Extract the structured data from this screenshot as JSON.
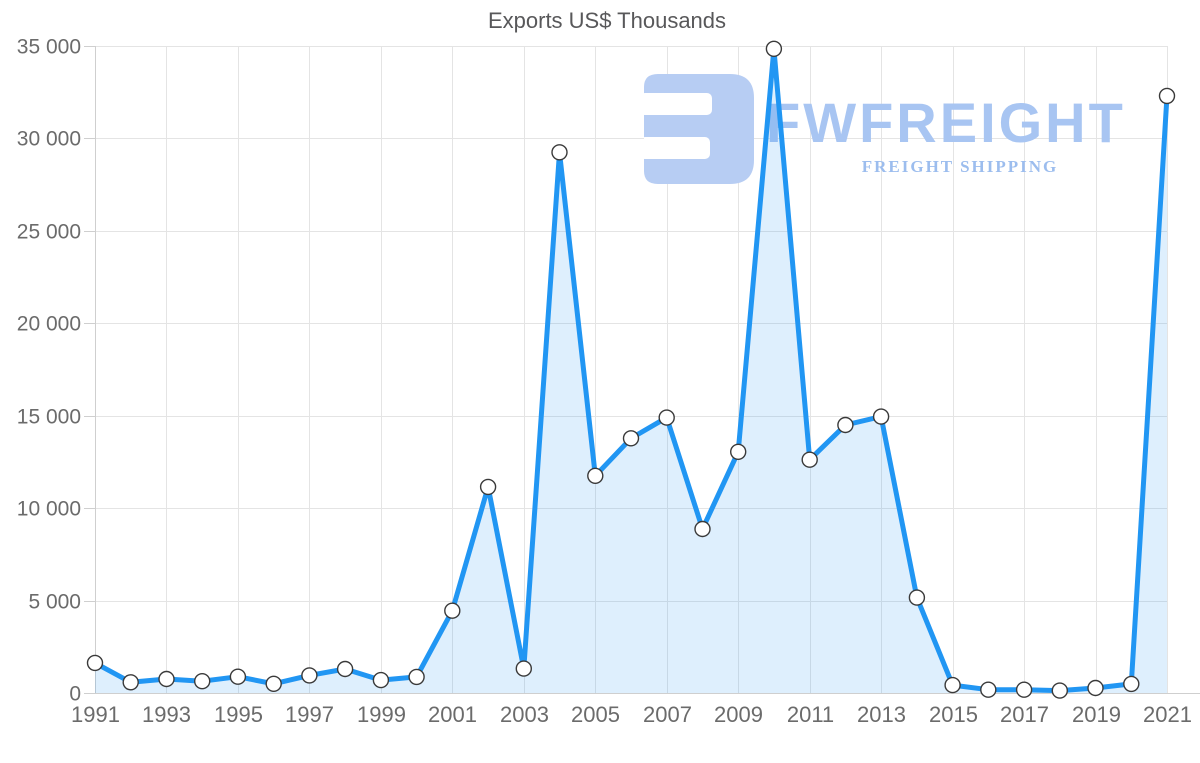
{
  "chart_data": {
    "type": "area",
    "title": "Exports US$ Thousands",
    "xlabel": "",
    "ylabel": "",
    "series": [
      {
        "name": "Exports US$ Thousands",
        "x": [
          1991,
          1992,
          1993,
          1994,
          1995,
          1996,
          1997,
          1998,
          1999,
          2000,
          2001,
          2002,
          2003,
          2004,
          2005,
          2006,
          2007,
          2008,
          2009,
          2010,
          2011,
          2012,
          2013,
          2014,
          2015,
          2016,
          2017,
          2018,
          2019,
          2020,
          2021
        ],
        "values": [
          1630,
          580,
          760,
          640,
          880,
          500,
          950,
          1300,
          700,
          870,
          4450,
          11150,
          1320,
          29250,
          11750,
          13780,
          14900,
          8870,
          13050,
          34850,
          12620,
          14500,
          14950,
          5160,
          430,
          180,
          180,
          130,
          270,
          490,
          32300
        ]
      }
    ],
    "xlim": [
      1991,
      2021
    ],
    "ylim": [
      0,
      35000
    ],
    "x_ticks": [
      1991,
      1993,
      1995,
      1997,
      1999,
      2001,
      2003,
      2005,
      2007,
      2009,
      2011,
      2013,
      2015,
      2017,
      2019,
      2021
    ],
    "x_tick_labels": [
      "1991",
      "1993",
      "1995",
      "1997",
      "1999",
      "2001",
      "2003",
      "2005",
      "2007",
      "2009",
      "2011",
      "2013",
      "2015",
      "2017",
      "2019",
      "2021"
    ],
    "y_ticks": [
      0,
      5000,
      10000,
      15000,
      20000,
      25000,
      30000,
      35000
    ],
    "y_tick_labels": [
      "0",
      "5 000",
      "10 000",
      "15 000",
      "20 000",
      "25 000",
      "30 000",
      "35 000"
    ],
    "grid": true,
    "legend": false,
    "colors": {
      "line": "#2196f3",
      "area_fill": "rgba(33,150,243,0.15)",
      "marker_fill": "#ffffff",
      "marker_stroke": "#3a3a3a",
      "gridline": "#e4e4e4",
      "axis": "#cfcfcf",
      "tick_label": "#6b6b6b",
      "title": "#58585a"
    }
  },
  "watermark": {
    "brand": "FWFREIGHT",
    "tagline": "FREIGHT SHIPPING",
    "logo_icon": "fwfreight-logo",
    "logo_color": "#b7cdf3"
  }
}
